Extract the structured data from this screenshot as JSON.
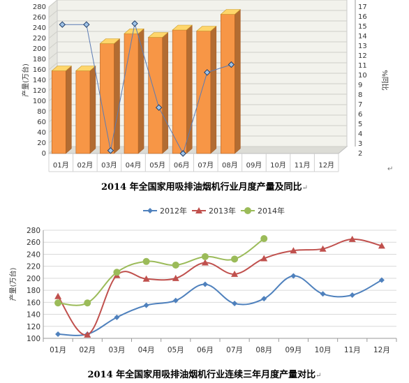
{
  "chart_data": [
    {
      "type": "bar",
      "title": "2014 年全国家用吸排油烟机行业月度产量及同比",
      "ylabel": "产量(万台)",
      "y2label": "%同比",
      "categories": [
        "01月",
        "02月",
        "03月",
        "04月",
        "05月",
        "06月",
        "07月",
        "08月",
        "09月",
        "10月",
        "11月",
        "12月"
      ],
      "ylim": [
        0,
        280
      ],
      "yticks": [
        0,
        20,
        40,
        60,
        80,
        100,
        120,
        140,
        160,
        180,
        200,
        220,
        240,
        260,
        280
      ],
      "y2lim": [
        2,
        17
      ],
      "y2ticks": [
        2,
        3,
        4,
        5,
        6,
        7,
        8,
        9,
        10,
        11,
        12,
        13,
        14,
        15,
        16,
        17
      ],
      "grid": true,
      "series": [
        {
          "axis": "left",
          "kind": "bar",
          "color": "#f79646",
          "values": [
            158,
            158,
            210,
            229,
            222,
            236,
            234,
            266,
            null,
            null,
            null,
            null
          ]
        },
        {
          "axis": "right",
          "kind": "line",
          "color": "#5b7bb4",
          "values": [
            15.2,
            15.2,
            2.3,
            15.3,
            6.7,
            2.0,
            10.3,
            11.1,
            null,
            null,
            null,
            null
          ]
        }
      ]
    },
    {
      "type": "line",
      "title": "2014 年全国家用吸排油烟机行业连续三年月度产量对比",
      "ylabel": "产量(万台)",
      "categories": [
        "01月",
        "02月",
        "03月",
        "04月",
        "05月",
        "06月",
        "07月",
        "08月",
        "09月",
        "10月",
        "11月",
        "12月"
      ],
      "ylim": [
        100,
        280
      ],
      "yticks": [
        100,
        120,
        140,
        160,
        180,
        200,
        220,
        240,
        260,
        280
      ],
      "grid": true,
      "legend": "top-center",
      "series": [
        {
          "name": "2012年",
          "color": "#4f81bd",
          "marker": "diamond",
          "values": [
            107,
            107,
            135,
            155,
            163,
            190,
            158,
            166,
            204,
            174,
            172,
            197
          ]
        },
        {
          "name": "2013年",
          "color": "#c0504d",
          "marker": "triangle",
          "values": [
            170,
            106,
            205,
            199,
            200,
            226,
            207,
            233,
            246,
            249,
            265,
            254
          ]
        },
        {
          "name": "2014年",
          "color": "#9bbb59",
          "marker": "circle",
          "values": [
            159,
            159,
            210,
            228,
            222,
            236,
            232,
            266,
            null,
            null,
            null,
            null
          ]
        }
      ]
    }
  ],
  "captions": {
    "chart1": "2014 年全国家用吸排油烟机行业月度产量及同比",
    "chart2": "2014 年全国家用吸排油烟机行业连续三年月度产量对比",
    "mark": "↵"
  }
}
